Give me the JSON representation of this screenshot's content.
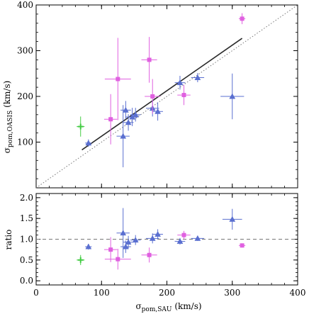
{
  "chart_data": [
    {
      "type": "scatter",
      "panel": "top",
      "xlim": [
        0,
        400
      ],
      "ylim": [
        0,
        400
      ],
      "xticks": [
        0,
        100,
        200,
        300,
        400
      ],
      "yticks": [
        100,
        200,
        300,
        400
      ],
      "xtick_labels": [
        "",
        "",
        "",
        "",
        ""
      ],
      "ytick_labels": [
        "100",
        "200",
        "300",
        "400"
      ],
      "ylabel": "σ_pom,OASIS (km/s)",
      "ylabel_main": "σ",
      "ylabel_sub": "pom,OASIS",
      "ylabel_unit": "(km/s)",
      "reference_line": {
        "style": "dotted",
        "color": "#777777",
        "points": [
          [
            0,
            0
          ],
          [
            400,
            400
          ]
        ]
      },
      "fit_line": {
        "style": "solid",
        "color": "#2a2a2a",
        "points": [
          [
            70,
            83
          ],
          [
            315,
            327
          ]
        ]
      },
      "series": [
        {
          "marker": "triangle",
          "color": "#5a6fd0",
          "points": [
            {
              "x": 80,
              "y": 98,
              "xerr": 5,
              "yerr": 8
            },
            {
              "x": 133,
              "y": 113,
              "xerr": 10,
              "yerr": 68
            },
            {
              "x": 137,
              "y": 170,
              "xerr": 8,
              "yerr": 20
            },
            {
              "x": 141,
              "y": 143,
              "xerr": 8,
              "yerr": 18
            },
            {
              "x": 147,
              "y": 155,
              "xerr": 10,
              "yerr": 20
            },
            {
              "x": 152,
              "y": 160,
              "xerr": 8,
              "yerr": 15
            },
            {
              "x": 178,
              "y": 174,
              "xerr": 10,
              "yerr": 18
            },
            {
              "x": 186,
              "y": 167,
              "xerr": 8,
              "yerr": 20
            },
            {
              "x": 220,
              "y": 230,
              "xerr": 8,
              "yerr": 15
            },
            {
              "x": 247,
              "y": 241,
              "xerr": 10,
              "yerr": 10
            },
            {
              "x": 300,
              "y": 200,
              "xerr": 18,
              "yerr": 50
            }
          ]
        },
        {
          "marker": "square",
          "color": "#e060e0",
          "points": [
            {
              "x": 114,
              "y": 150,
              "xerr": 10,
              "yerr": 55
            },
            {
              "x": 125,
              "y": 238,
              "xerr": 20,
              "yerr": 90
            },
            {
              "x": 173,
              "y": 280,
              "xerr": 12,
              "yerr": 50
            },
            {
              "x": 178,
              "y": 200,
              "xerr": 12,
              "yerr": 38
            },
            {
              "x": 226,
              "y": 203,
              "xerr": 10,
              "yerr": 22
            },
            {
              "x": 315,
              "y": 370,
              "xerr": 5,
              "yerr": 12
            }
          ]
        },
        {
          "marker": "cross",
          "color": "#44cc44",
          "points": [
            {
              "x": 68,
              "y": 134,
              "xerr": 6,
              "yerr": 22
            }
          ]
        }
      ]
    },
    {
      "type": "scatter",
      "panel": "bottom",
      "xlim": [
        0,
        400
      ],
      "ylim": [
        -0.1,
        2.1
      ],
      "xticks": [
        0,
        100,
        200,
        300,
        400
      ],
      "yticks": [
        0.0,
        0.5,
        1.0,
        1.5,
        2.0
      ],
      "xtick_labels": [
        "0",
        "100",
        "200",
        "300",
        "400"
      ],
      "ytick_labels": [
        "0.0",
        "0.5",
        "1.0",
        "1.5",
        "2.0"
      ],
      "xlabel": "σ_pom,SAU (km/s)",
      "xlabel_main": "σ",
      "xlabel_sub": "pom,SAU",
      "xlabel_unit": "(km/s)",
      "ylabel": "ratio",
      "reference_line": {
        "style": "dashed",
        "color": "#777777",
        "points": [
          [
            0,
            1.0
          ],
          [
            400,
            1.0
          ]
        ]
      },
      "series": [
        {
          "marker": "triangle",
          "color": "#5a6fd0",
          "points": [
            {
              "x": 80,
              "y": 0.82,
              "xerr": 5,
              "yerr": 0.07
            },
            {
              "x": 133,
              "y": 1.15,
              "xerr": 10,
              "yerr": 0.6
            },
            {
              "x": 137,
              "y": 0.82,
              "xerr": 8,
              "yerr": 0.15
            },
            {
              "x": 141,
              "y": 0.93,
              "xerr": 8,
              "yerr": 0.15
            },
            {
              "x": 152,
              "y": 0.98,
              "xerr": 8,
              "yerr": 0.12
            },
            {
              "x": 178,
              "y": 1.02,
              "xerr": 10,
              "yerr": 0.12
            },
            {
              "x": 186,
              "y": 1.12,
              "xerr": 8,
              "yerr": 0.12
            },
            {
              "x": 220,
              "y": 0.95,
              "xerr": 8,
              "yerr": 0.08
            },
            {
              "x": 247,
              "y": 1.02,
              "xerr": 10,
              "yerr": 0.06
            },
            {
              "x": 300,
              "y": 1.48,
              "xerr": 15,
              "yerr": 0.25
            }
          ]
        },
        {
          "marker": "square",
          "color": "#e060e0",
          "points": [
            {
              "x": 114,
              "y": 0.75,
              "xerr": 10,
              "yerr": 0.3
            },
            {
              "x": 125,
              "y": 0.52,
              "xerr": 20,
              "yerr": 0.25
            },
            {
              "x": 173,
              "y": 0.62,
              "xerr": 12,
              "yerr": 0.18
            },
            {
              "x": 226,
              "y": 1.1,
              "xerr": 10,
              "yerr": 0.1
            },
            {
              "x": 315,
              "y": 0.85,
              "xerr": 5,
              "yerr": 0.05
            }
          ]
        },
        {
          "marker": "cross",
          "color": "#44cc44",
          "points": [
            {
              "x": 68,
              "y": 0.5,
              "xerr": 6,
              "yerr": 0.12
            }
          ]
        }
      ]
    }
  ]
}
